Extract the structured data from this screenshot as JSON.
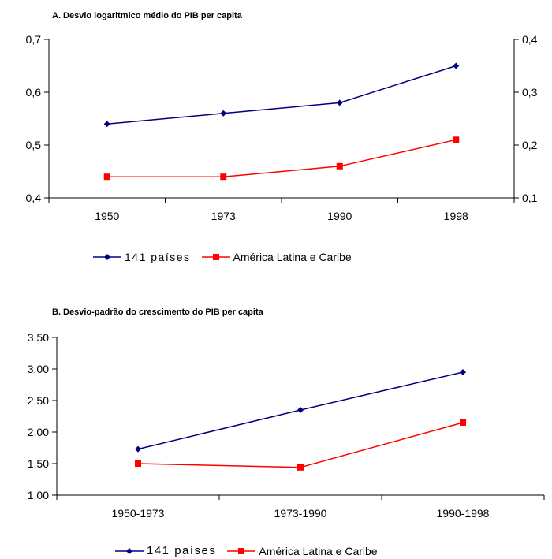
{
  "chart_data": [
    {
      "type": "line",
      "title": "A. Desvio logaritmico médio do PIB per capita",
      "categories": [
        "1950",
        "1973",
        "1990",
        "1998"
      ],
      "ylim": [
        0.4,
        0.7
      ],
      "yticks": [
        "0,4",
        "0,5",
        "0,6",
        "0,7"
      ],
      "y2lim": [
        0.1,
        0.4
      ],
      "y2ticks": [
        "0,1",
        "0,2",
        "0,3",
        "0,4"
      ],
      "series": [
        {
          "name": "141 países",
          "axis": "left",
          "color": "#000080",
          "marker": "diamond",
          "values": [
            0.54,
            0.56,
            0.58,
            0.65
          ]
        },
        {
          "name": "América Latina e Caribe",
          "axis": "right",
          "color": "#ff0000",
          "marker": "square",
          "values": [
            0.14,
            0.14,
            0.16,
            0.21
          ]
        }
      ],
      "legend": "bottom"
    },
    {
      "type": "line",
      "title": "B. Desvio-padrão do crescimento do PIB per capita",
      "categories": [
        "1950-1973",
        "1973-1990",
        "1990-1998"
      ],
      "ylim": [
        1.0,
        3.5
      ],
      "yticks": [
        "1,00",
        "1,50",
        "2,00",
        "2,50",
        "3,00",
        "3,50"
      ],
      "series": [
        {
          "name": "141 países",
          "axis": "left",
          "color": "#000080",
          "marker": "diamond",
          "values": [
            1.73,
            2.35,
            2.95
          ]
        },
        {
          "name": "América Latina e Caribe",
          "axis": "left",
          "color": "#ff0000",
          "marker": "square",
          "values": [
            1.5,
            1.44,
            2.15
          ]
        }
      ],
      "legend": "bottom"
    }
  ]
}
